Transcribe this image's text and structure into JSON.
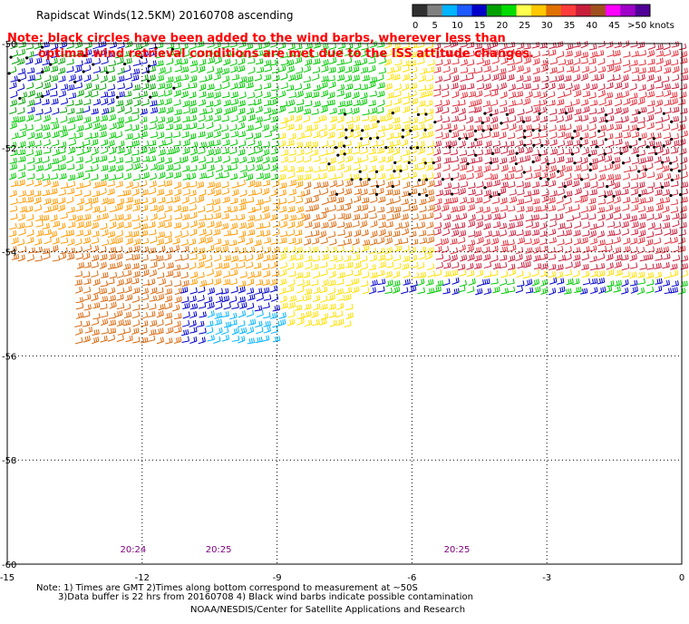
{
  "title": "Rapidscat Winds(12.5KM) 20160708 ascending",
  "note_line1": "Note: black circles have been added to the wind barbs, wherever less than",
  "note_line2": "optimal wind retrieval conditions are met due to the ISS attitude changes.",
  "legend": {
    "labels": [
      "0",
      "5",
      "10",
      "15",
      "20",
      "25",
      "30",
      "35",
      "40",
      "45",
      ">50 knots"
    ],
    "colors": [
      "#303030",
      "#808080",
      "#00b4ff",
      "#1e5aff",
      "#0000c8",
      "#00a000",
      "#00dc00",
      "#ffff50",
      "#ffc800",
      "#e07000",
      "#ff3c3c",
      "#c81e3c",
      "#a0501e",
      "#ff00ff",
      "#a000c8",
      "#500096"
    ]
  },
  "axes": {
    "x_ticks": [
      "-15",
      "-12",
      "-9",
      "-6",
      "-3",
      "0"
    ],
    "y_ticks": [
      "-50",
      "-52",
      "-54",
      "-56",
      "-58",
      "-60"
    ],
    "x_range": [
      -15,
      0
    ],
    "y_range": [
      -60,
      -50
    ]
  },
  "time_labels": [
    {
      "text": "20:24",
      "lon": -12.2
    },
    {
      "text": "20:25",
      "lon": -10.3
    },
    {
      "text": "20:25",
      "lon": -5.0
    }
  ],
  "footer_line1": "Note: 1) Times are GMT 2)Times along bottom correspond to measurement at ~50S",
  "footer_line2": "3)Data buffer is 22 hrs from 20160708 4) Black wind barbs indicate possible contamination",
  "footer_line3": "NOAA/NESDIS/Center for Satellite Applications and Research",
  "colors": {
    "note": "#ff0000",
    "time": "#800080",
    "grid": "#000000"
  }
}
